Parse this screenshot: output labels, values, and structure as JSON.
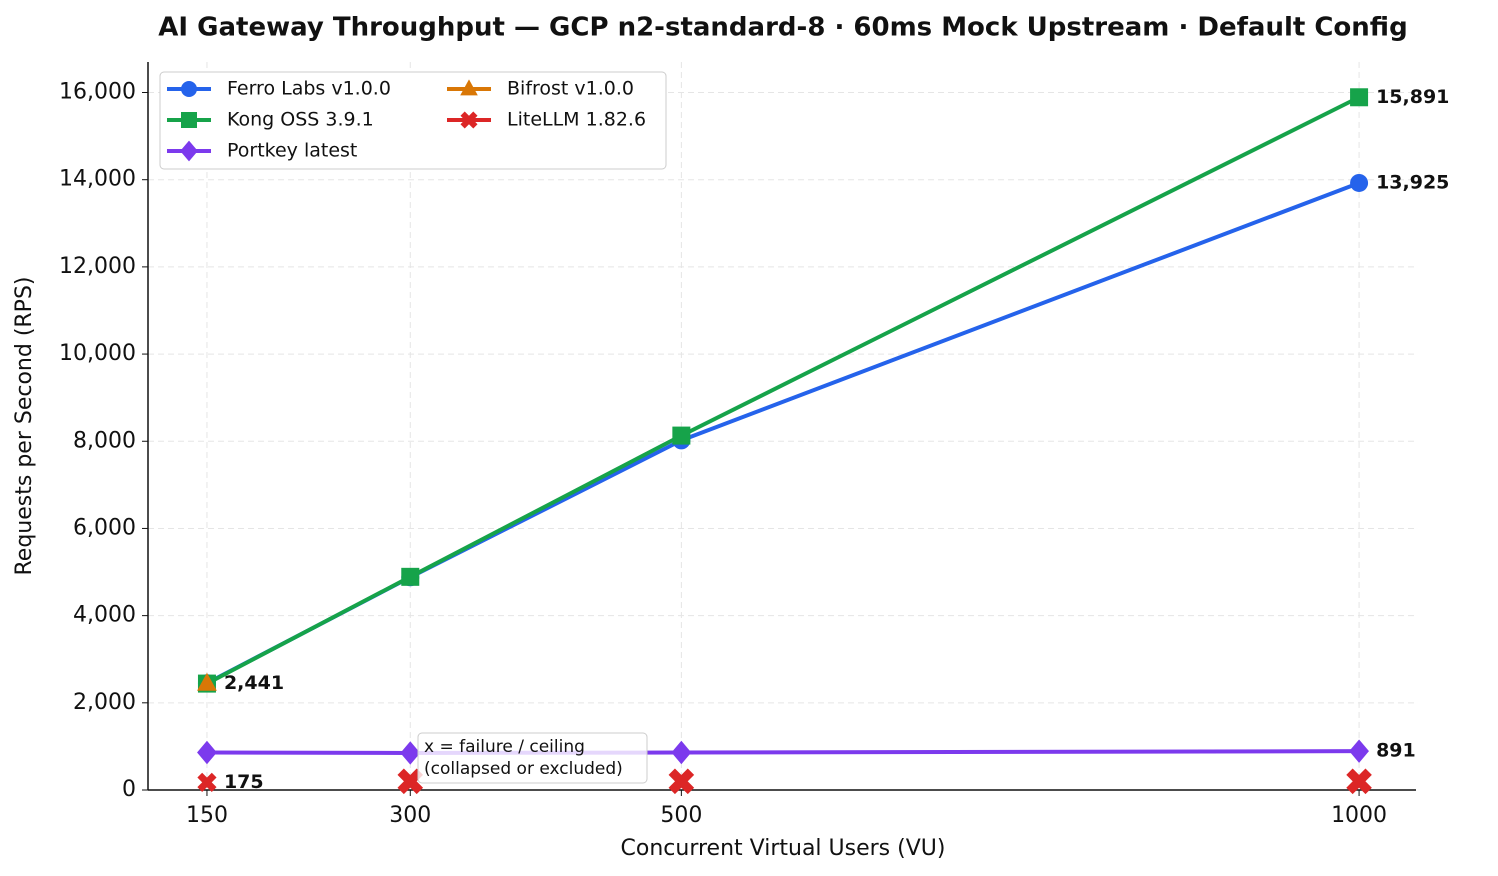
{
  "chart_data": {
    "type": "line",
    "title": "AI Gateway Throughput — GCP n2-standard-8 · 60ms Mock Upstream · Default Config",
    "x_label": "Concurrent Virtual Users (VU)",
    "y_label": "Requests per Second (RPS)",
    "x": [
      150,
      300,
      500,
      1000
    ],
    "xlim": [
      106.5,
      1042
    ],
    "xticks": [
      150,
      300,
      500,
      1000
    ],
    "ylim": [
      0,
      16700
    ],
    "yticks": [
      0,
      {
        "value": 2000,
        "label": "2,000"
      },
      {
        "value": 4000,
        "label": "4,000"
      },
      {
        "value": 6000,
        "label": "6,000"
      },
      {
        "value": 8000,
        "label": "8,000"
      },
      {
        "value": 10000,
        "label": "10,000"
      },
      {
        "value": 12000,
        "label": "12,000"
      },
      {
        "value": 14000,
        "label": "14,000"
      },
      {
        "value": 16000,
        "label": "16,000"
      }
    ],
    "grid": true,
    "legend": "upper left",
    "series": [
      {
        "name": "Ferro Labs v1.0.0",
        "color": "#2563eb",
        "marker": "circle",
        "values": [
          2450,
          4880,
          8020,
          13925
        ],
        "value_labels": [
          null,
          null,
          null,
          "13,925"
        ]
      },
      {
        "name": "Kong OSS 3.9.1",
        "color": "#16a34a",
        "marker": "square",
        "values": [
          2441,
          4890,
          8130,
          15891
        ],
        "value_labels": [
          null,
          null,
          null,
          "15,891"
        ]
      },
      {
        "name": "Portkey latest",
        "color": "#7c3aed",
        "marker": "diamond",
        "values": [
          860,
          850,
          860,
          891
        ],
        "value_labels": [
          null,
          null,
          null,
          "891"
        ]
      },
      {
        "name": "Bifrost v1.0.0",
        "color": "#d97706",
        "marker": "triangle",
        "values": [
          2441,
          null,
          null,
          null
        ],
        "value_labels": [
          "2,441",
          null,
          null,
          null
        ]
      },
      {
        "name": "LiteLLM 1.82.6",
        "color": "#dc2626",
        "marker": "xfilled",
        "values": [
          175,
          null,
          null,
          null
        ],
        "value_labels": [
          "175",
          null,
          null,
          null
        ]
      }
    ],
    "failure_markers": {
      "color": "#dc2626",
      "x": [
        300,
        500,
        1000
      ],
      "values": [
        200,
        200,
        200
      ]
    },
    "annotation": [
      "x = failure / ceiling",
      "(collapsed or excluded)"
    ]
  }
}
